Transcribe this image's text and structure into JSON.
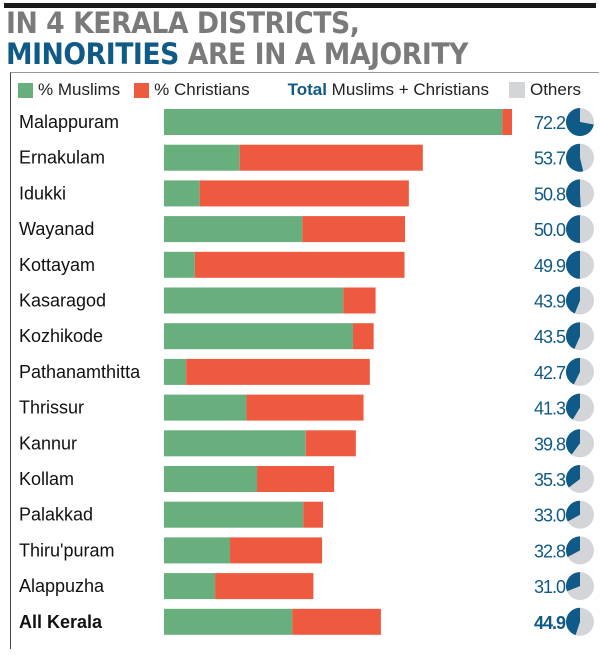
{
  "title": {
    "line1": "IN 4 KERALA DISTRICTS,",
    "line2_highlight": "MINORITIES",
    "line2_rest": " ARE IN A MAJORITY"
  },
  "legend": {
    "muslims": "% Muslims",
    "christians": "% Christians",
    "total_bold": "Total",
    "total_rest": " Muslims + Christians",
    "others": "Others"
  },
  "colors": {
    "muslims": "#69ae7d",
    "christians": "#ee5a3f",
    "total": "#0f5a86",
    "others": "#d3d5d9",
    "title_gray": "#7a7a7a"
  },
  "chart_data": {
    "type": "bar",
    "stacked": true,
    "orientation": "horizontal",
    "categories": [
      "Malappuram",
      "Ernakulam",
      "Idukki",
      "Wayanad",
      "Kottayam",
      "Kasaragod",
      "Kozhikode",
      "Pathanamthitta",
      "Thrissur",
      "Kannur",
      "Kollam",
      "Palakkad",
      "Thiru'puram",
      "Alappuzha",
      "All Kerala"
    ],
    "series": [
      {
        "name": "% Muslims",
        "values": [
          70.2,
          15.7,
          7.4,
          28.7,
          6.4,
          37.2,
          39.2,
          4.6,
          17.1,
          29.4,
          19.3,
          28.9,
          13.7,
          10.6,
          26.6
        ]
      },
      {
        "name": "% Christians",
        "values": [
          2.0,
          38.0,
          43.4,
          21.3,
          43.5,
          6.7,
          4.3,
          38.1,
          24.3,
          10.4,
          16.0,
          4.1,
          19.1,
          20.4,
          18.4
        ]
      }
    ],
    "totals": [
      "72.2",
      "53.7",
      "50.8",
      "50.0",
      "49.9",
      "43.9",
      "43.5",
      "42.7",
      "41.3",
      "39.8",
      "35.3",
      "33.0",
      "32.8",
      "31.0",
      "44.9"
    ],
    "xlim": [
      0,
      72.2
    ],
    "grid": false,
    "legend_position": "top"
  }
}
